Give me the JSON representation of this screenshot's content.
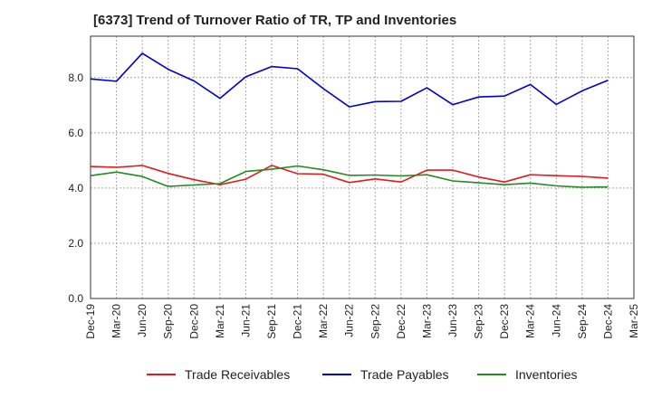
{
  "chart_data": {
    "type": "line",
    "title": "[6373]  Trend of Turnover Ratio of TR, TP and Inventories",
    "xlabel": "",
    "ylabel": "",
    "x": [
      "Dec-19",
      "Mar-20",
      "Jun-20",
      "Sep-20",
      "Dec-20",
      "Mar-21",
      "Jun-21",
      "Sep-21",
      "Dec-21",
      "Mar-22",
      "Jun-22",
      "Sep-22",
      "Dec-22",
      "Mar-23",
      "Jun-23",
      "Sep-23",
      "Dec-23",
      "Mar-24",
      "Jun-24",
      "Sep-24",
      "Dec-24",
      "Mar-25"
    ],
    "ylim": [
      0,
      9.5
    ],
    "yticks": [
      "0.0",
      "2.0",
      "4.0",
      "6.0",
      "8.0"
    ],
    "grid": true,
    "legend_position": "bottom",
    "series": [
      {
        "name": "Trade Receivables",
        "color": "#e41a1c",
        "values": [
          4.78,
          4.75,
          4.82,
          4.53,
          4.3,
          4.12,
          4.32,
          4.82,
          4.52,
          4.5,
          4.2,
          4.33,
          4.22,
          4.65,
          4.65,
          4.4,
          4.22,
          4.48,
          4.45,
          4.42,
          4.36,
          null
        ]
      },
      {
        "name": "Trade Payables",
        "color": "#0000cc",
        "values": [
          7.95,
          7.87,
          8.88,
          8.3,
          7.88,
          7.25,
          8.03,
          8.4,
          8.32,
          7.6,
          6.94,
          7.13,
          7.14,
          7.63,
          7.02,
          7.3,
          7.33,
          7.75,
          7.03,
          7.52,
          7.9,
          null
        ]
      },
      {
        "name": "Inventories",
        "color": "#228b22",
        "values": [
          4.45,
          4.58,
          4.42,
          4.06,
          4.11,
          4.16,
          4.6,
          4.68,
          4.8,
          4.66,
          4.46,
          4.47,
          4.44,
          4.48,
          4.26,
          4.19,
          4.12,
          4.18,
          4.08,
          4.03,
          4.04,
          null
        ]
      }
    ]
  }
}
